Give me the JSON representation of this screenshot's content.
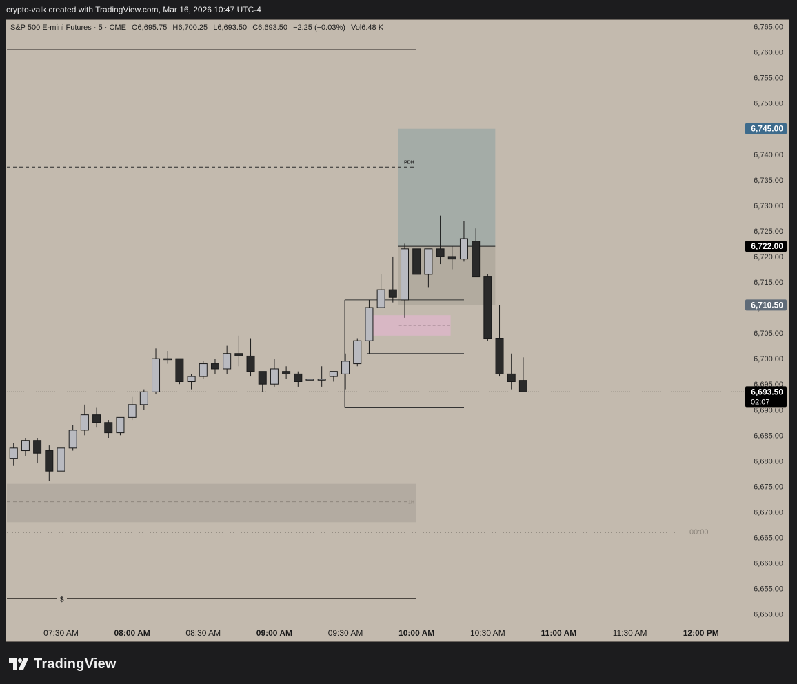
{
  "header": {
    "caption": "crypto-valk created with TradingView.com, Mar 16, 2026 10:47 UTC-4"
  },
  "legend": {
    "symbol": "S&P 500 E-mini Futures · 5 · CME",
    "open": "O6,695.75",
    "high": "H6,700.25",
    "low": "L6,693.50",
    "close": "C6,693.50",
    "change": "−2.25 (−0.03%)",
    "volume": "Vol6.48 K"
  },
  "footer": {
    "brand": "TradingView",
    "logo_icon": "tradingview-logo-icon"
  },
  "colors": {
    "background": "#c3baae",
    "bull_body": "#b9bac0",
    "bear_body": "#2a2a2a",
    "wick": "#1a1a1a",
    "target_zone": "#a4aca7",
    "stop_zone": "#b2ab9f",
    "pink_zone": "#d8b7c4",
    "lower_zone": "#b3aba1",
    "badge_target": "#3d6b8c",
    "badge_entry": "#000000",
    "badge_stop": "#5f6b78",
    "badge_last": "#000000"
  },
  "chart_data": {
    "type": "candlestick",
    "title": "S&P 500 E-mini Futures · 5 · CME",
    "interval": "5",
    "xlabel": "",
    "ylabel": "",
    "ylim": [
      6646,
      6768
    ],
    "y_ticks": [
      "6,765.00",
      "6,760.00",
      "6,755.00",
      "6,750.00",
      "6,745.00",
      "6,740.00",
      "6,735.00",
      "6,730.00",
      "6,725.00",
      "6,720.00",
      "6,715.00",
      "6,710.00",
      "6,705.00",
      "6,700.00",
      "6,695.00",
      "6,690.00",
      "6,685.00",
      "6,680.00",
      "6,675.00",
      "6,670.00",
      "6,665.00",
      "6,660.00",
      "6,655.00",
      "6,650.00"
    ],
    "x_ticks": [
      {
        "label": "07:30 AM",
        "time": "07:30",
        "bold": false
      },
      {
        "label": "08:00 AM",
        "time": "08:00",
        "bold": true
      },
      {
        "label": "08:30 AM",
        "time": "08:30",
        "bold": false
      },
      {
        "label": "09:00 AM",
        "time": "09:00",
        "bold": true
      },
      {
        "label": "09:30 AM",
        "time": "09:30",
        "bold": false
      },
      {
        "label": "10:00 AM",
        "time": "10:00",
        "bold": true
      },
      {
        "label": "10:30 AM",
        "time": "10:30",
        "bold": false
      },
      {
        "label": "11:00 AM",
        "time": "11:00",
        "bold": true
      },
      {
        "label": "11:30 AM",
        "time": "11:30",
        "bold": false
      },
      {
        "label": "12:00 PM",
        "time": "12:00",
        "bold": true
      }
    ],
    "candles": [
      {
        "t": "07:10",
        "o": 6680.5,
        "h": 6683.5,
        "l": 6679.0,
        "c": 6682.5
      },
      {
        "t": "07:15",
        "o": 6682.0,
        "h": 6684.5,
        "l": 6681.0,
        "c": 6684.0
      },
      {
        "t": "07:20",
        "o": 6684.0,
        "h": 6684.5,
        "l": 6679.5,
        "c": 6681.5
      },
      {
        "t": "07:25",
        "o": 6682.0,
        "h": 6683.0,
        "l": 6676.0,
        "c": 6678.0
      },
      {
        "t": "07:30",
        "o": 6678.0,
        "h": 6683.0,
        "l": 6677.0,
        "c": 6682.5
      },
      {
        "t": "07:35",
        "o": 6682.5,
        "h": 6687.0,
        "l": 6682.0,
        "c": 6686.0
      },
      {
        "t": "07:40",
        "o": 6686.0,
        "h": 6691.0,
        "l": 6685.0,
        "c": 6689.0
      },
      {
        "t": "07:45",
        "o": 6689.0,
        "h": 6690.5,
        "l": 6686.5,
        "c": 6687.5
      },
      {
        "t": "07:50",
        "o": 6687.5,
        "h": 6688.0,
        "l": 6684.5,
        "c": 6685.5
      },
      {
        "t": "07:55",
        "o": 6685.5,
        "h": 6688.5,
        "l": 6685.0,
        "c": 6688.5
      },
      {
        "t": "08:00",
        "o": 6688.5,
        "h": 6692.5,
        "l": 6688.0,
        "c": 6691.0
      },
      {
        "t": "08:05",
        "o": 6691.0,
        "h": 6694.0,
        "l": 6690.0,
        "c": 6693.5
      },
      {
        "t": "08:10",
        "o": 6693.5,
        "h": 6702.0,
        "l": 6693.0,
        "c": 6700.0
      },
      {
        "t": "08:15",
        "o": 6700.0,
        "h": 6701.5,
        "l": 6699.0,
        "c": 6700.0
      },
      {
        "t": "08:20",
        "o": 6700.0,
        "h": 6700.0,
        "l": 6695.0,
        "c": 6695.5
      },
      {
        "t": "08:25",
        "o": 6695.5,
        "h": 6697.0,
        "l": 6694.0,
        "c": 6696.5
      },
      {
        "t": "08:30",
        "o": 6696.5,
        "h": 6699.5,
        "l": 6696.0,
        "c": 6699.0
      },
      {
        "t": "08:35",
        "o": 6699.0,
        "h": 6700.0,
        "l": 6697.0,
        "c": 6698.0
      },
      {
        "t": "08:40",
        "o": 6698.0,
        "h": 6702.5,
        "l": 6697.0,
        "c": 6701.0
      },
      {
        "t": "08:45",
        "o": 6701.0,
        "h": 6704.5,
        "l": 6698.5,
        "c": 6700.5
      },
      {
        "t": "08:50",
        "o": 6700.5,
        "h": 6704.0,
        "l": 6696.5,
        "c": 6697.5
      },
      {
        "t": "08:55",
        "o": 6697.5,
        "h": 6697.5,
        "l": 6693.5,
        "c": 6695.0
      },
      {
        "t": "09:00",
        "o": 6695.0,
        "h": 6700.0,
        "l": 6694.5,
        "c": 6698.0
      },
      {
        "t": "09:05",
        "o": 6697.5,
        "h": 6698.5,
        "l": 6696.0,
        "c": 6697.0
      },
      {
        "t": "09:10",
        "o": 6697.0,
        "h": 6697.5,
        "l": 6694.5,
        "c": 6695.5
      },
      {
        "t": "09:15",
        "o": 6696.0,
        "h": 6697.0,
        "l": 6694.5,
        "c": 6696.0
      },
      {
        "t": "09:20",
        "o": 6696.0,
        "h": 6698.5,
        "l": 6694.5,
        "c": 6696.0
      },
      {
        "t": "09:25",
        "o": 6696.5,
        "h": 6697.5,
        "l": 6695.5,
        "c": 6697.5
      },
      {
        "t": "09:30",
        "o": 6697.0,
        "h": 6701.0,
        "l": 6694.0,
        "c": 6699.5
      },
      {
        "t": "09:35",
        "o": 6699.0,
        "h": 6704.0,
        "l": 6698.5,
        "c": 6703.5
      },
      {
        "t": "09:40",
        "o": 6703.5,
        "h": 6711.5,
        "l": 6701.0,
        "c": 6710.0
      },
      {
        "t": "09:45",
        "o": 6710.0,
        "h": 6716.5,
        "l": 6710.0,
        "c": 6713.5
      },
      {
        "t": "09:50",
        "o": 6713.5,
        "h": 6720.0,
        "l": 6711.0,
        "c": 6712.0
      },
      {
        "t": "09:55",
        "o": 6711.5,
        "h": 6722.5,
        "l": 6708.0,
        "c": 6721.5
      },
      {
        "t": "10:00",
        "o": 6721.5,
        "h": 6721.5,
        "l": 6716.5,
        "c": 6716.5
      },
      {
        "t": "10:05",
        "o": 6716.5,
        "h": 6721.5,
        "l": 6714.0,
        "c": 6721.5
      },
      {
        "t": "10:10",
        "o": 6721.5,
        "h": 6728.0,
        "l": 6718.5,
        "c": 6720.0
      },
      {
        "t": "10:15",
        "o": 6720.0,
        "h": 6722.0,
        "l": 6717.5,
        "c": 6719.5
      },
      {
        "t": "10:20",
        "o": 6719.5,
        "h": 6727.0,
        "l": 6719.0,
        "c": 6723.5
      },
      {
        "t": "10:25",
        "o": 6723.0,
        "h": 6725.5,
        "l": 6716.0,
        "c": 6716.0
      },
      {
        "t": "10:30",
        "o": 6716.0,
        "h": 6716.5,
        "l": 6703.5,
        "c": 6704.0
      },
      {
        "t": "10:35",
        "o": 6704.0,
        "h": 6710.5,
        "l": 6696.5,
        "c": 6697.0
      },
      {
        "t": "10:40",
        "o": 6697.0,
        "h": 6701.0,
        "l": 6694.0,
        "c": 6695.5
      },
      {
        "t": "10:45",
        "o": 6695.75,
        "h": 6700.25,
        "l": 6693.5,
        "c": 6693.5
      }
    ],
    "annotations": [
      {
        "label": "PDH",
        "price": 6737.5,
        "style": "dashed"
      },
      {
        "label": "1H",
        "price": 6672.0,
        "style": "dashed"
      },
      {
        "label": "$",
        "price": 6653.0,
        "style": "solid"
      },
      {
        "label": "00:00",
        "price": 6666.0,
        "style": "dotted"
      }
    ],
    "levels": [
      {
        "price": 6760.5,
        "style": "solid"
      },
      {
        "price": 6711.5,
        "style": "solid"
      },
      {
        "price": 6701.0,
        "style": "solid"
      },
      {
        "price": 6690.5,
        "style": "solid"
      }
    ],
    "position": {
      "target": 6745.0,
      "entry": 6722.0,
      "stop": 6710.5,
      "start_time": "09:55",
      "end_time": "10:30"
    },
    "zones": [
      {
        "name": "pink",
        "top": 6708.5,
        "bottom": 6704.5,
        "mid": 6706.5,
        "start_time": "09:45",
        "end_time": "10:10"
      },
      {
        "name": "lower",
        "top": 6675.5,
        "bottom": 6668.0,
        "start_time": "07:00",
        "end_time": "10:00"
      }
    ],
    "price_badges": [
      {
        "price": 6745.0,
        "label": "6,745.00",
        "color_key": "badge_target"
      },
      {
        "price": 6722.0,
        "label": "6,722.00",
        "color_key": "badge_entry"
      },
      {
        "price": 6710.5,
        "label": "6,710.50",
        "color_key": "badge_stop"
      },
      {
        "price": 6693.5,
        "label": "6,693.50",
        "sub": "02:07",
        "color_key": "badge_last"
      }
    ],
    "last_price": 6693.5,
    "grid": false,
    "legend_position": "top-left"
  }
}
